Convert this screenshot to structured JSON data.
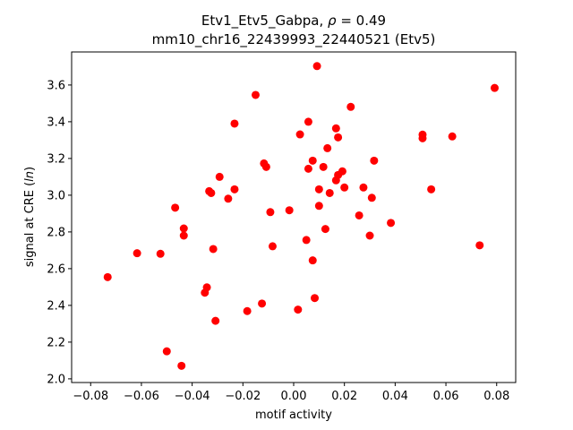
{
  "chart_data": {
    "type": "scatter",
    "title_line1": "Etv1_Etv5_Gabpa, ρ = 0.49",
    "title_line2": "mm10_chr16_22439993_22440521 (Etv5)",
    "xlabel": "motif activity",
    "ylabel": "signal at CRE (ln)",
    "xlim": [
      -0.0875,
      0.0875
    ],
    "ylim": [
      1.98,
      3.78
    ],
    "xticks": [
      -0.08,
      -0.06,
      -0.04,
      -0.02,
      0.0,
      0.02,
      0.04,
      0.06,
      0.08
    ],
    "xtick_labels": [
      "−0.08",
      "−0.06",
      "−0.04",
      "−0.02",
      "0.00",
      "0.02",
      "0.04",
      "0.06",
      "0.08"
    ],
    "yticks": [
      2.0,
      2.2,
      2.4,
      2.6,
      2.8,
      3.0,
      3.2,
      3.4,
      3.6
    ],
    "ytick_labels": [
      "2.0",
      "2.2",
      "2.4",
      "2.6",
      "2.8",
      "3.0",
      "3.2",
      "3.4",
      "3.6"
    ],
    "grid": false,
    "color": "#ff0000",
    "points": [
      {
        "x": -0.0733,
        "y": 2.554
      },
      {
        "x": -0.0617,
        "y": 2.684
      },
      {
        "x": -0.0525,
        "y": 2.681
      },
      {
        "x": -0.05,
        "y": 2.15
      },
      {
        "x": -0.0467,
        "y": 2.932
      },
      {
        "x": -0.0442,
        "y": 2.071
      },
      {
        "x": -0.0433,
        "y": 2.819
      },
      {
        "x": -0.0433,
        "y": 2.78
      },
      {
        "x": -0.035,
        "y": 2.469
      },
      {
        "x": -0.0342,
        "y": 2.498
      },
      {
        "x": -0.0333,
        "y": 3.022
      },
      {
        "x": -0.0325,
        "y": 3.012
      },
      {
        "x": -0.0317,
        "y": 2.707
      },
      {
        "x": -0.0308,
        "y": 2.316
      },
      {
        "x": -0.0292,
        "y": 3.1
      },
      {
        "x": -0.0258,
        "y": 2.981
      },
      {
        "x": -0.0233,
        "y": 3.39
      },
      {
        "x": -0.0233,
        "y": 3.032
      },
      {
        "x": -0.0183,
        "y": 2.369
      },
      {
        "x": -0.015,
        "y": 3.546
      },
      {
        "x": -0.0125,
        "y": 2.41
      },
      {
        "x": -0.0117,
        "y": 3.173
      },
      {
        "x": -0.0108,
        "y": 3.154
      },
      {
        "x": -0.0092,
        "y": 2.908
      },
      {
        "x": -0.0083,
        "y": 2.722
      },
      {
        "x": -0.0017,
        "y": 2.918
      },
      {
        "x": 0.0017,
        "y": 2.377
      },
      {
        "x": 0.0025,
        "y": 3.331
      },
      {
        "x": 0.005,
        "y": 2.756
      },
      {
        "x": 0.0058,
        "y": 3.4
      },
      {
        "x": 0.0058,
        "y": 3.144
      },
      {
        "x": 0.0075,
        "y": 3.188
      },
      {
        "x": 0.0075,
        "y": 2.645
      },
      {
        "x": 0.0083,
        "y": 2.44
      },
      {
        "x": 0.0092,
        "y": 3.703
      },
      {
        "x": 0.01,
        "y": 3.032
      },
      {
        "x": 0.01,
        "y": 2.942
      },
      {
        "x": 0.0117,
        "y": 3.154
      },
      {
        "x": 0.0125,
        "y": 2.816
      },
      {
        "x": 0.0133,
        "y": 3.256
      },
      {
        "x": 0.0142,
        "y": 3.012
      },
      {
        "x": 0.0167,
        "y": 3.364
      },
      {
        "x": 0.0175,
        "y": 3.315
      },
      {
        "x": 0.0175,
        "y": 3.11
      },
      {
        "x": 0.0167,
        "y": 3.081
      },
      {
        "x": 0.0192,
        "y": 3.13
      },
      {
        "x": 0.02,
        "y": 3.042
      },
      {
        "x": 0.0225,
        "y": 3.481
      },
      {
        "x": 0.0258,
        "y": 2.89
      },
      {
        "x": 0.0275,
        "y": 3.042
      },
      {
        "x": 0.03,
        "y": 2.78
      },
      {
        "x": 0.0308,
        "y": 2.986
      },
      {
        "x": 0.0317,
        "y": 3.188
      },
      {
        "x": 0.0383,
        "y": 2.849
      },
      {
        "x": 0.0508,
        "y": 3.33
      },
      {
        "x": 0.0508,
        "y": 3.31
      },
      {
        "x": 0.0542,
        "y": 3.032
      },
      {
        "x": 0.0625,
        "y": 3.32
      },
      {
        "x": 0.0733,
        "y": 2.727
      },
      {
        "x": 0.0792,
        "y": 3.584
      }
    ]
  }
}
